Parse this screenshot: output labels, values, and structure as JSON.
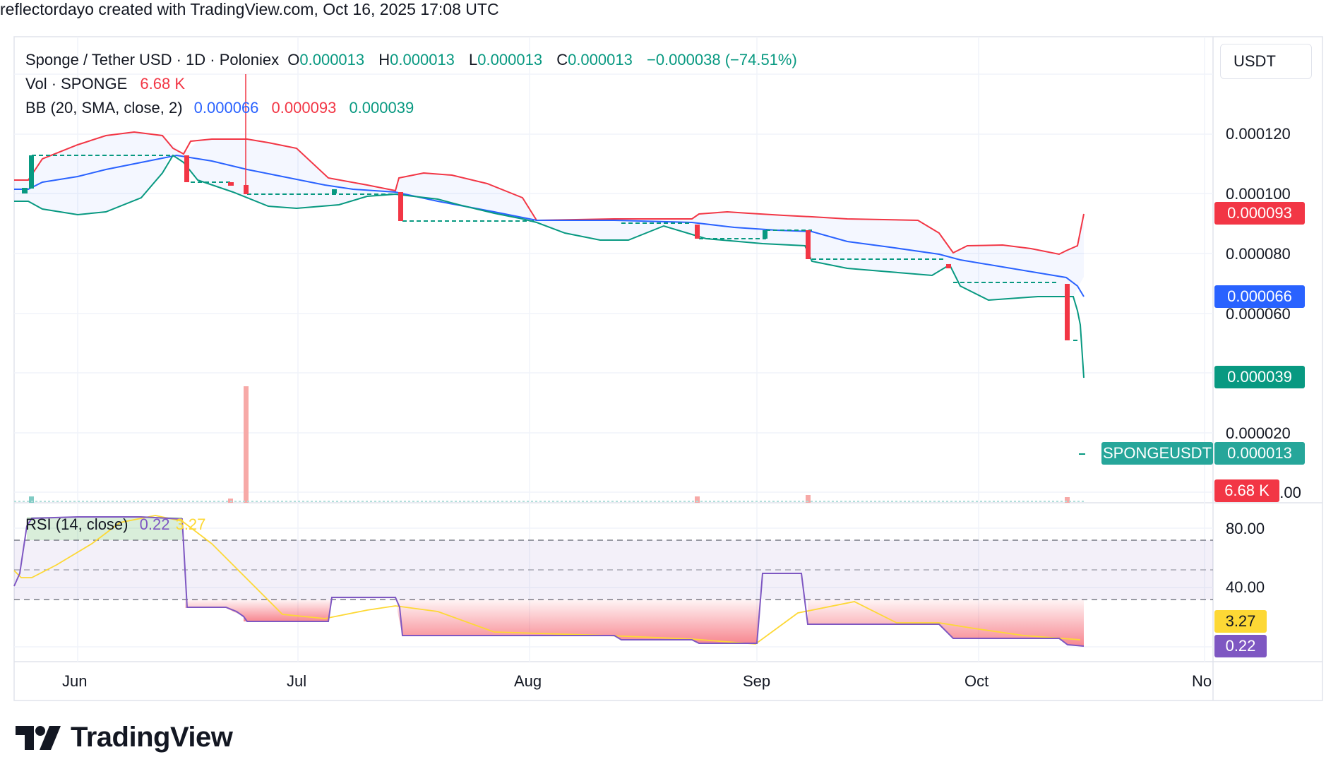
{
  "header": {
    "attribution": "reflectordayo created with TradingView.com, Oct 16, 2025 17:08 UTC"
  },
  "legend": {
    "symbol": "Sponge / Tether USD · 1D · Poloniex",
    "open_key": "O",
    "open": "0.000013",
    "high_key": "H",
    "high": "0.000013",
    "low_key": "L",
    "low": "0.000013",
    "close_key": "C",
    "close": "0.000013",
    "change": "−0.000038 (−74.51%)",
    "vol_label": "Vol · SPONGE",
    "vol_value": "6.68 K",
    "bb_label": "BB (20, SMA, close, 2)",
    "bb_basis": "0.000066",
    "bb_upper": "0.000093",
    "bb_lower": "0.000039",
    "rsi_label": "RSI (14, close)",
    "rsi_value": "0.22",
    "rsi_ma": "3.27"
  },
  "currency_button": "USDT",
  "price_axis": {
    "ticks": [
      "0.000120",
      "0.000100",
      "0.000080",
      "0.000060",
      "0.000020",
      "0.00"
    ]
  },
  "rsi_axis": {
    "ticks": [
      "80.00",
      "40.00"
    ]
  },
  "time_axis": {
    "ticks": [
      "Jun",
      "Jul",
      "Aug",
      "Sep",
      "Oct",
      "No"
    ]
  },
  "price_labels": {
    "upper": "0.000093",
    "basis": "0.000066",
    "lower": "0.000039",
    "symbol_tag": "SPONGEUSDT",
    "last": "0.000013",
    "volume": "6.68 K",
    "rsi_ma": "3.27",
    "rsi": "0.22"
  },
  "colors": {
    "up": "#089981",
    "down": "#f23645",
    "basis": "#2962ff",
    "upper": "#f23645",
    "lower": "#089981",
    "rsi": "#7e57c2",
    "rsi_ma": "#fdd835"
  },
  "brand": "TradingView",
  "chart_data": {
    "type": "candlestick",
    "title": "Sponge / Tether USD · 1D · Poloniex",
    "x_ticks": [
      "Jun",
      "Jul",
      "Aug",
      "Sep",
      "Oct",
      "No"
    ],
    "y_ticks": [
      "0.000120",
      "0.000100",
      "0.000080",
      "0.000060",
      "0.000020",
      "0.00"
    ],
    "ylim": [
      0,
      0.000128
    ],
    "candles": [
      {
        "date": "2025-05-26",
        "open": 0.0001,
        "close": 0.0001,
        "high": 0.000101,
        "low": 0.0001
      },
      {
        "date": "2025-05-28",
        "open": 0.000102,
        "close": 0.000113,
        "high": 0.000113,
        "low": 0.000102
      },
      {
        "date": "2025-06-17",
        "open": 0.000113,
        "close": 0.000105,
        "high": 0.000113,
        "low": 0.000105
      },
      {
        "date": "2025-06-22",
        "open": 0.000104,
        "close": 0.000103,
        "high": 0.000104,
        "low": 0.000103
      },
      {
        "date": "2025-06-24",
        "open": 0.000103,
        "close": 0.0001,
        "high": 0.000128,
        "low": 0.0001
      },
      {
        "date": "2025-07-05",
        "open": 0.0001,
        "close": 0.000101,
        "high": 0.000101,
        "low": 0.0001
      },
      {
        "date": "2025-07-15",
        "open": 0.000101,
        "close": 9.1e-05,
        "high": 0.000101,
        "low": 9.1e-05
      },
      {
        "date": "2025-08-24",
        "open": 9e-05,
        "close": 8.5e-05,
        "high": 9e-05,
        "low": 8.5e-05
      },
      {
        "date": "2025-09-01",
        "open": 8.5e-05,
        "close": 8.8e-05,
        "high": 8.8e-05,
        "low": 8.5e-05
      },
      {
        "date": "2025-09-08",
        "open": 8.8e-05,
        "close": 7.8e-05,
        "high": 8.8e-05,
        "low": 7.8e-05
      },
      {
        "date": "2025-09-28",
        "open": 7.7e-05,
        "close": 7.6e-05,
        "high": 7.7e-05,
        "low": 7.6e-05
      },
      {
        "date": "2025-10-13",
        "open": 6.9e-05,
        "close": 5e-05,
        "high": 6.9e-05,
        "low": 5e-05
      },
      {
        "date": "2025-10-16",
        "open": 1.3e-05,
        "close": 1.3e-05,
        "high": 1.3e-05,
        "low": 1.3e-05
      }
    ],
    "bollinger": {
      "upper_last": 9.3e-05,
      "basis_last": 6.6e-05,
      "lower_last": 3.9e-05
    },
    "volume_last": "6.68 K",
    "rsi": {
      "length": 14,
      "last": 0.22,
      "ma_last": 3.27,
      "bands": [
        70,
        50,
        30
      ]
    }
  }
}
